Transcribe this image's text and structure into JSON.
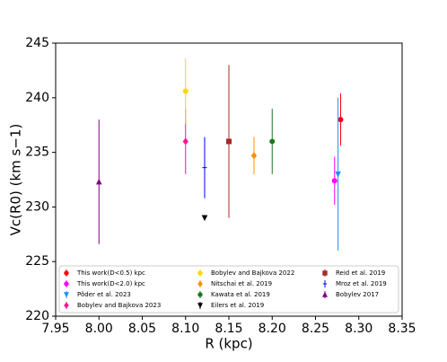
{
  "chart_data": {
    "type": "errorbar",
    "xlabel": "R (kpc)",
    "ylabel": "Vc(R0) (km s−1)",
    "xlim": [
      7.95,
      8.35
    ],
    "xticks": [
      7.95,
      {
        "value": 8.0,
        "label": "8.00"
      },
      8.05,
      {
        "value": 8.1,
        "label": "8.10"
      },
      8.15,
      {
        "value": 8.2,
        "label": "8.20"
      },
      8.25,
      {
        "value": 8.3,
        "label": "8.30"
      },
      8.35
    ],
    "ylim": [
      220,
      245
    ],
    "yticks": [
      220,
      225,
      230,
      235,
      240,
      245
    ],
    "grid": false,
    "legend": "lower center",
    "series": [
      {
        "name": "This work(D<0.5) kpc",
        "color": "#ff0000",
        "marker": "circle",
        "x": [
          8.279
        ],
        "values": [
          238.0
        ],
        "yerr": [
          2.4
        ]
      },
      {
        "name": "This work(D<2.0) kpc",
        "color": "#ff00ff",
        "marker": "circle",
        "x": [
          8.272
        ],
        "values": [
          232.4
        ],
        "yerr": [
          2.2
        ]
      },
      {
        "name": "Põder et al. 2023",
        "color": "#1e90ff",
        "marker": "triangle-down",
        "x": [
          8.276
        ],
        "values": [
          233.0
        ],
        "yerr": [
          7.0
        ]
      },
      {
        "name": "Bobylev and Bajkova 2023",
        "color": "#ff1493",
        "marker": "diamond",
        "x": [
          8.1
        ],
        "values": [
          236.0
        ],
        "yerr": [
          3.0
        ]
      },
      {
        "name": "Bobylev and Bajkova 2022",
        "color": "#ffd700",
        "marker": "circle",
        "x": [
          8.1
        ],
        "values": [
          240.6
        ],
        "yerr": [
          3.0
        ]
      },
      {
        "name": "Nitschai et al. 2019",
        "color": "#ff8c00",
        "marker": "diamond",
        "x": [
          8.179
        ],
        "values": [
          234.7
        ],
        "yerr": [
          1.7
        ]
      },
      {
        "name": "Kawata et al. 2019",
        "color": "#1a7a1a",
        "marker": "circle",
        "x": [
          8.2
        ],
        "values": [
          236.0
        ],
        "yerr": [
          3.0
        ]
      },
      {
        "name": "Eilers et al. 2019",
        "color": "#000000",
        "marker": "triangle-down",
        "x": [
          8.122
        ],
        "values": [
          229.0
        ],
        "yerr": [
          0
        ]
      },
      {
        "name": "Reid et al. 2019",
        "color": "#a52a2a",
        "marker": "square",
        "x": [
          8.15
        ],
        "values": [
          236.0
        ],
        "yerr": [
          7.0
        ]
      },
      {
        "name": "Mroz et al. 2019",
        "color": "#0000ff",
        "marker": "plus",
        "x": [
          8.122
        ],
        "values": [
          233.6
        ],
        "yerr": [
          2.8
        ]
      },
      {
        "name": "Bobylev 2017",
        "color": "#800080",
        "marker": "triangle-up",
        "x": [
          8.0
        ],
        "values": [
          232.3
        ],
        "yerr": [
          5.7
        ]
      }
    ]
  }
}
